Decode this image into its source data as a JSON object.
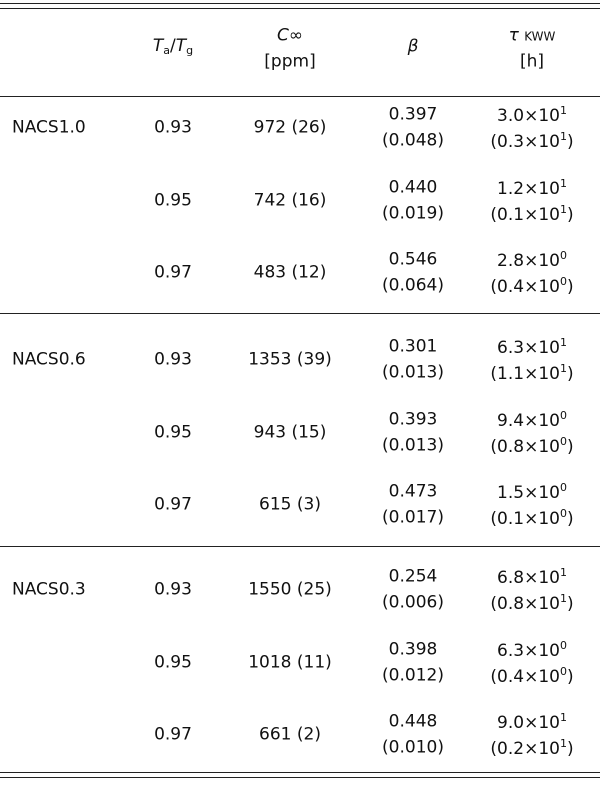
{
  "header": {
    "ratio": {
      "var1": "T",
      "sub1": "a",
      "slash": "/",
      "var2": "T",
      "sub2": "g"
    },
    "conc": {
      "symbol": "C",
      "inf": "∞",
      "unit": "[ppm]"
    },
    "beta": {
      "symbol": "β"
    },
    "tau": {
      "symbol": "τ",
      "sub": "KWW",
      "unit": "[h]"
    }
  },
  "groups": [
    {
      "name": "NACS1.0",
      "rows": [
        {
          "ratio": "0.93",
          "conc": "972 (26)",
          "beta": "0.397",
          "beta_err": "(0.048)",
          "tau": {
            "mantissa": "3.0×10",
            "exp": "1"
          },
          "tau_err": {
            "mantissa": "(0.3×10",
            "exp": "1",
            "close": ")"
          }
        },
        {
          "ratio": "0.95",
          "conc": "742 (16)",
          "beta": "0.440",
          "beta_err": "(0.019)",
          "tau": {
            "mantissa": "1.2×10",
            "exp": "1"
          },
          "tau_err": {
            "mantissa": "(0.1×10",
            "exp": "1",
            "close": ")"
          }
        },
        {
          "ratio": "0.97",
          "conc": "483 (12)",
          "beta": "0.546",
          "beta_err": "(0.064)",
          "tau": {
            "mantissa": "2.8×10",
            "exp": "0"
          },
          "tau_err": {
            "mantissa": "(0.4×10",
            "exp": "0",
            "close": ")"
          }
        }
      ]
    },
    {
      "name": "NACS0.6",
      "rows": [
        {
          "ratio": "0.93",
          "conc": "1353 (39)",
          "beta": "0.301",
          "beta_err": "(0.013)",
          "tau": {
            "mantissa": "6.3×10",
            "exp": "1"
          },
          "tau_err": {
            "mantissa": "(1.1×10",
            "exp": "1",
            "close": ")"
          }
        },
        {
          "ratio": "0.95",
          "conc": "943 (15)",
          "beta": "0.393",
          "beta_err": "(0.013)",
          "tau": {
            "mantissa": "9.4×10",
            "exp": "0"
          },
          "tau_err": {
            "mantissa": "(0.8×10",
            "exp": "0",
            "close": ")"
          }
        },
        {
          "ratio": "0.97",
          "conc": "615 (3)",
          "beta": "0.473",
          "beta_err": "(0.017)",
          "tau": {
            "mantissa": "1.5×10",
            "exp": "0"
          },
          "tau_err": {
            "mantissa": "(0.1×10",
            "exp": "0",
            "close": ")"
          }
        }
      ]
    },
    {
      "name": "NACS0.3",
      "rows": [
        {
          "ratio": "0.93",
          "conc": "1550 (25)",
          "beta": "0.254",
          "beta_err": "(0.006)",
          "tau": {
            "mantissa": "6.8×10",
            "exp": "1"
          },
          "tau_err": {
            "mantissa": "(0.8×10",
            "exp": "1",
            "close": ")"
          }
        },
        {
          "ratio": "0.95",
          "conc": "1018 (11)",
          "beta": "0.398",
          "beta_err": "(0.012)",
          "tau": {
            "mantissa": "6.3×10",
            "exp": "0"
          },
          "tau_err": {
            "mantissa": "(0.4×10",
            "exp": "0",
            "close": ")"
          }
        },
        {
          "ratio": "0.97",
          "conc": "661 (2)",
          "beta": "0.448",
          "beta_err": "(0.010)",
          "tau": {
            "mantissa": "9.0×10",
            "exp": "1"
          },
          "tau_err": {
            "mantissa": "(0.2×10",
            "exp": "1",
            "close": ")"
          }
        }
      ]
    }
  ]
}
